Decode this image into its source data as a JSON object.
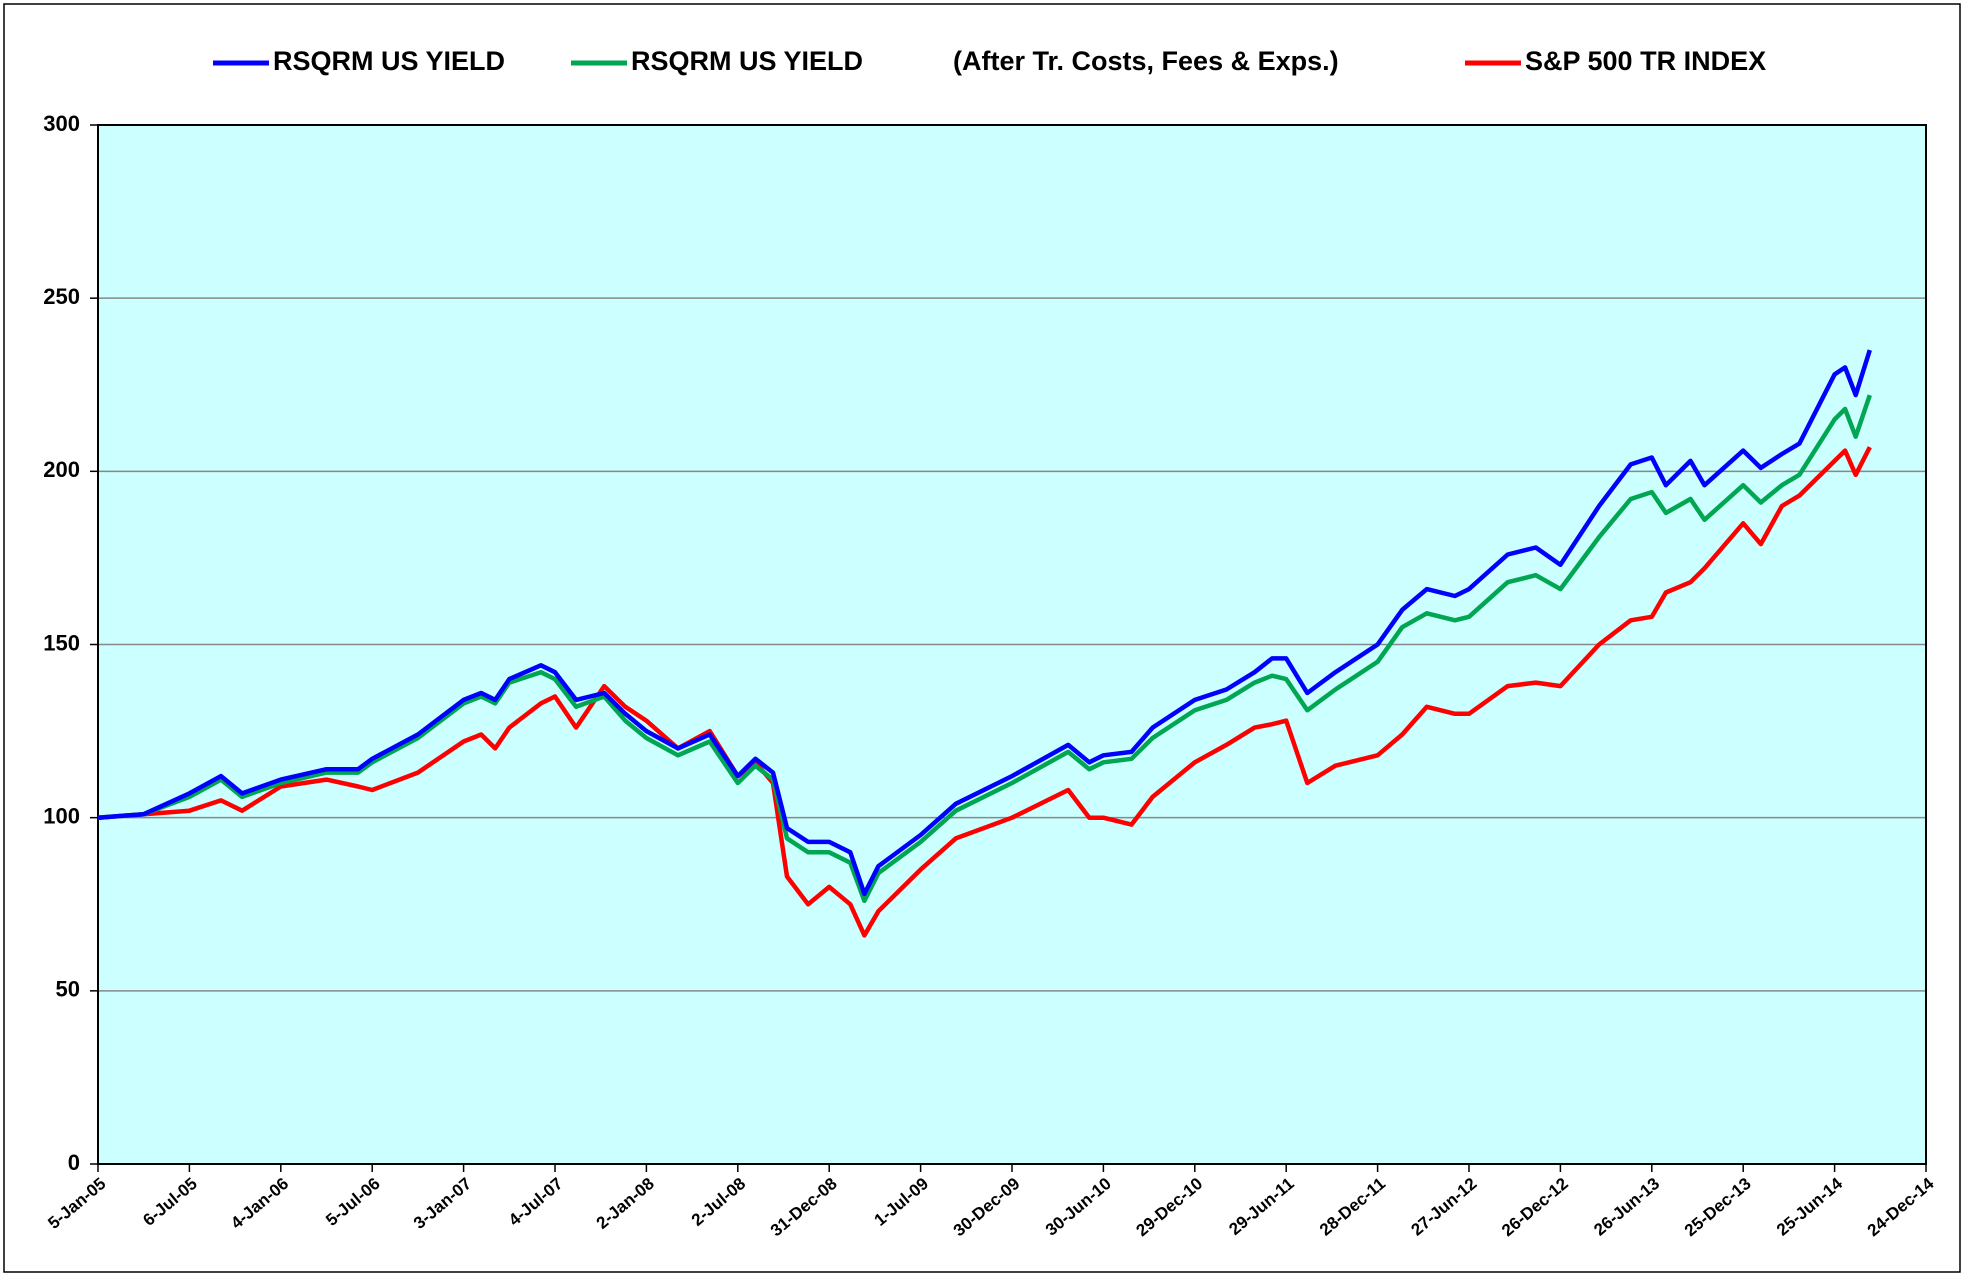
{
  "chart_data": {
    "type": "line",
    "legend_note": "(After Tr. Costs, Fees & Exps.)",
    "x": [
      "5-Jan-05",
      "6-Apr-05",
      "6-Jul-05",
      "7-Sep-05",
      "19-Oct-05",
      "4-Jan-06",
      "5-Apr-06",
      "7-Jun-06",
      "5-Jul-06",
      "4-Oct-06",
      "3-Jan-07",
      "7-Feb-07",
      "7-Mar-07",
      "4-Apr-07",
      "6-Jun-07",
      "4-Jul-07",
      "15-Aug-07",
      "10-Oct-07",
      "21-Nov-07",
      "2-Jan-08",
      "5-Mar-08",
      "7-May-08",
      "2-Jul-08",
      "6-Aug-08",
      "10-Sep-08",
      "8-Oct-08",
      "19-Nov-08",
      "31-Dec-08",
      "11-Feb-09",
      "11-Mar-09",
      "8-Apr-09",
      "1-Jul-09",
      "9-Sep-09",
      "30-Dec-09",
      "21-Apr-10",
      "2-Jun-10",
      "30-Jun-10",
      "25-Aug-10",
      "6-Oct-10",
      "29-Dec-10",
      "2-Mar-11",
      "27-Apr-11",
      "1-Jun-11",
      "29-Jun-11",
      "10-Aug-11",
      "5-Oct-11",
      "28-Dec-11",
      "15-Feb-12",
      "4-Apr-12",
      "30-May-12",
      "27-Jun-12",
      "12-Sep-12",
      "7-Nov-12",
      "26-Dec-12",
      "13-Mar-13",
      "15-May-13",
      "26-Jun-13",
      "24-Jul-13",
      "11-Sep-13",
      "9-Oct-13",
      "25-Dec-13",
      "29-Jan-14",
      "12-Mar-14",
      "16-Apr-14",
      "25-Jun-14",
      "16-Jul-14",
      "6-Aug-14",
      "3-Sep-14"
    ],
    "series": [
      {
        "name": "RSQRM US YIELD",
        "color": "#0000ff",
        "values": [
          100,
          101,
          107,
          112,
          107,
          111,
          114,
          114,
          117,
          124,
          134,
          136,
          134,
          140,
          144,
          142,
          134,
          136,
          130,
          125,
          120,
          124,
          112,
          117,
          113,
          97,
          93,
          93,
          90,
          78,
          86,
          95,
          104,
          112,
          121,
          116,
          118,
          119,
          126,
          134,
          137,
          142,
          146,
          146,
          136,
          142,
          150,
          160,
          166,
          164,
          166,
          176,
          178,
          173,
          190,
          202,
          204,
          196,
          203,
          196,
          206,
          201,
          205,
          208,
          228,
          230,
          222,
          235
        ]
      },
      {
        "name": "RSQRM US YIELD",
        "color": "#00a651",
        "values": [
          100,
          101,
          106,
          111,
          106,
          110,
          113,
          113,
          116,
          123,
          133,
          135,
          133,
          139,
          142,
          140,
          132,
          135,
          128,
          123,
          118,
          122,
          110,
          115,
          111,
          94,
          90,
          90,
          87,
          76,
          84,
          93,
          102,
          110,
          119,
          114,
          116,
          117,
          123,
          131,
          134,
          139,
          141,
          140,
          131,
          137,
          145,
          155,
          159,
          157,
          158,
          168,
          170,
          166,
          181,
          192,
          194,
          188,
          192,
          186,
          196,
          191,
          196,
          199,
          215,
          218,
          210,
          222
        ]
      },
      {
        "name": "S&P 500 TR INDEX",
        "color": "#ff0000",
        "values": [
          100,
          101,
          102,
          105,
          102,
          109,
          111,
          109,
          108,
          113,
          122,
          124,
          120,
          126,
          133,
          135,
          126,
          138,
          132,
          128,
          120,
          125,
          112,
          116,
          110,
          83,
          75,
          80,
          75,
          66,
          73,
          85,
          94,
          100,
          108,
          100,
          100,
          98,
          106,
          116,
          121,
          126,
          127,
          128,
          110,
          115,
          118,
          124,
          132,
          130,
          130,
          138,
          139,
          138,
          150,
          157,
          158,
          165,
          168,
          172,
          185,
          179,
          190,
          193,
          203,
          206,
          199,
          207
        ]
      }
    ],
    "xlim": [
      "5-Jan-05",
      "24-Dec-14"
    ],
    "xticks": [
      "5-Jan-05",
      "6-Jul-05",
      "4-Jan-06",
      "5-Jul-06",
      "3-Jan-07",
      "4-Jul-07",
      "2-Jan-08",
      "2-Jul-08",
      "31-Dec-08",
      "1-Jul-09",
      "30-Dec-09",
      "30-Jun-10",
      "29-Dec-10",
      "29-Jun-11",
      "28-Dec-11",
      "27-Jun-12",
      "26-Dec-12",
      "26-Jun-13",
      "25-Dec-13",
      "25-Jun-14",
      "24-Dec-14"
    ],
    "ylim": [
      0,
      300
    ],
    "yticks": [
      0,
      50,
      100,
      150,
      200,
      250,
      300
    ],
    "grid": true,
    "legend": "top",
    "plot_background": "#ccffff"
  }
}
